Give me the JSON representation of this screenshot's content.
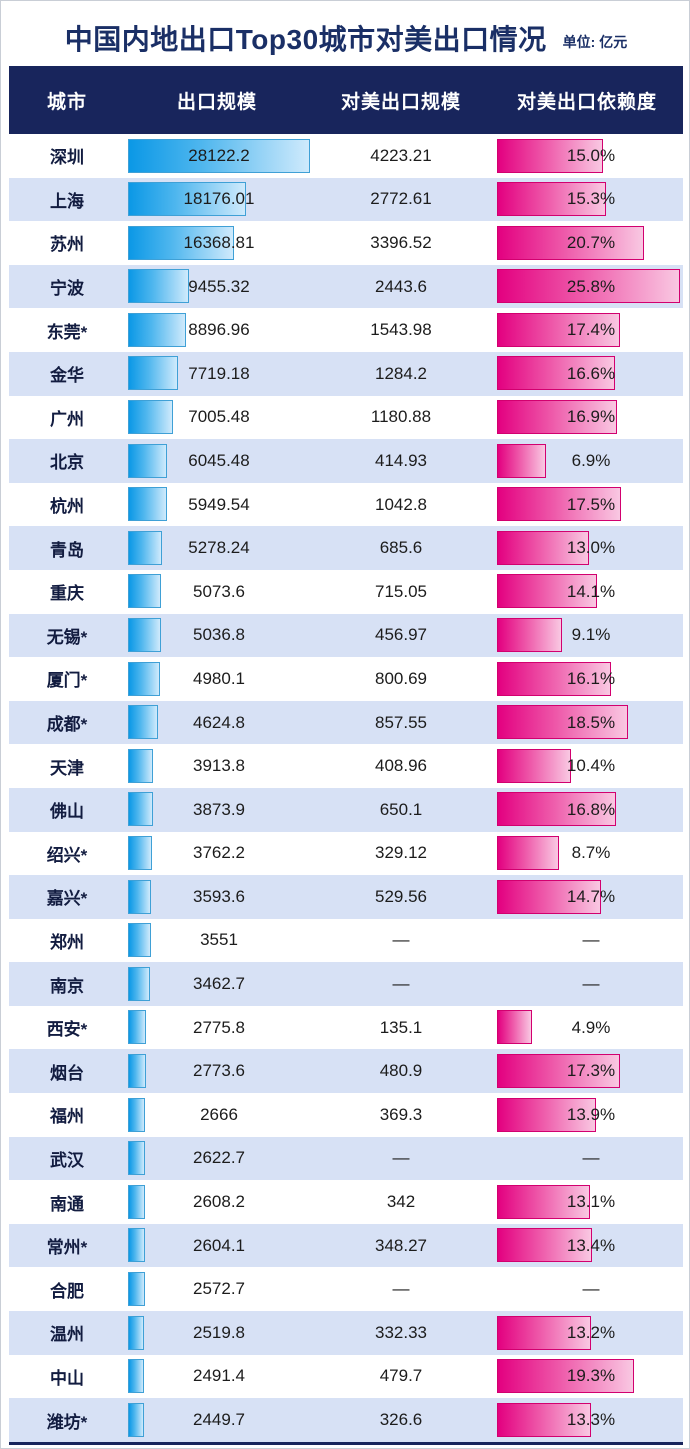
{
  "title": "中国内地出口Top30城市对美出口情况",
  "unit_label": "单位: 亿元",
  "missing_label": "—",
  "colors": {
    "navy_header": "#18255c",
    "title_text": "#1a2f66",
    "alt_row": "#d7e1f5",
    "blue_bar_start": "#0b98e6",
    "blue_bar_end": "#cfeafc",
    "pink_bar_start": "#e30080",
    "pink_bar_end": "#f9c8e2"
  },
  "table": {
    "headers": [
      "城市",
      "出口规模",
      "对美出口规模",
      "对美出口依赖度"
    ],
    "rows": [
      {
        "city": "深圳",
        "export": 28122.2,
        "export_label": "28122.2",
        "us_label": "4223.21",
        "pct": 15.0,
        "pct_label": "15.0%"
      },
      {
        "city": "上海",
        "export": 18176.01,
        "export_label": "18176.01",
        "us_label": "2772.61",
        "pct": 15.3,
        "pct_label": "15.3%"
      },
      {
        "city": "苏州",
        "export": 16368.81,
        "export_label": "16368.81",
        "us_label": "3396.52",
        "pct": 20.7,
        "pct_label": "20.7%"
      },
      {
        "city": "宁波",
        "export": 9455.32,
        "export_label": "9455.32",
        "us_label": "2443.6",
        "pct": 25.8,
        "pct_label": "25.8%"
      },
      {
        "city": "东莞*",
        "export": 8896.96,
        "export_label": "8896.96",
        "us_label": "1543.98",
        "pct": 17.4,
        "pct_label": "17.4%"
      },
      {
        "city": "金华",
        "export": 7719.18,
        "export_label": "7719.18",
        "us_label": "1284.2",
        "pct": 16.6,
        "pct_label": "16.6%"
      },
      {
        "city": "广州",
        "export": 7005.48,
        "export_label": "7005.48",
        "us_label": "1180.88",
        "pct": 16.9,
        "pct_label": "16.9%"
      },
      {
        "city": "北京",
        "export": 6045.48,
        "export_label": "6045.48",
        "us_label": "414.93",
        "pct": 6.9,
        "pct_label": "6.9%"
      },
      {
        "city": "杭州",
        "export": 5949.54,
        "export_label": "5949.54",
        "us_label": "1042.8",
        "pct": 17.5,
        "pct_label": "17.5%"
      },
      {
        "city": "青岛",
        "export": 5278.24,
        "export_label": "5278.24",
        "us_label": "685.6",
        "pct": 13.0,
        "pct_label": "13.0%"
      },
      {
        "city": "重庆",
        "export": 5073.6,
        "export_label": "5073.6",
        "us_label": "715.05",
        "pct": 14.1,
        "pct_label": "14.1%"
      },
      {
        "city": "无锡*",
        "export": 5036.8,
        "export_label": "5036.8",
        "us_label": "456.97",
        "pct": 9.1,
        "pct_label": "9.1%"
      },
      {
        "city": "厦门*",
        "export": 4980.1,
        "export_label": "4980.1",
        "us_label": "800.69",
        "pct": 16.1,
        "pct_label": "16.1%"
      },
      {
        "city": "成都*",
        "export": 4624.8,
        "export_label": "4624.8",
        "us_label": "857.55",
        "pct": 18.5,
        "pct_label": "18.5%"
      },
      {
        "city": "天津",
        "export": 3913.8,
        "export_label": "3913.8",
        "us_label": "408.96",
        "pct": 10.4,
        "pct_label": "10.4%"
      },
      {
        "city": "佛山",
        "export": 3873.9,
        "export_label": "3873.9",
        "us_label": "650.1",
        "pct": 16.8,
        "pct_label": "16.8%"
      },
      {
        "city": "绍兴*",
        "export": 3762.2,
        "export_label": "3762.2",
        "us_label": "329.12",
        "pct": 8.7,
        "pct_label": "8.7%"
      },
      {
        "city": "嘉兴*",
        "export": 3593.6,
        "export_label": "3593.6",
        "us_label": "529.56",
        "pct": 14.7,
        "pct_label": "14.7%"
      },
      {
        "city": "郑州",
        "export": 3551,
        "export_label": "3551",
        "us_label": "—",
        "pct": null,
        "pct_label": "—"
      },
      {
        "city": "南京",
        "export": 3462.7,
        "export_label": "3462.7",
        "us_label": "—",
        "pct": null,
        "pct_label": "—"
      },
      {
        "city": "西安*",
        "export": 2775.8,
        "export_label": "2775.8",
        "us_label": "135.1",
        "pct": 4.9,
        "pct_label": "4.9%"
      },
      {
        "city": "烟台",
        "export": 2773.6,
        "export_label": "2773.6",
        "us_label": "480.9",
        "pct": 17.3,
        "pct_label": "17.3%"
      },
      {
        "city": "福州",
        "export": 2666,
        "export_label": "2666",
        "us_label": "369.3",
        "pct": 13.9,
        "pct_label": "13.9%"
      },
      {
        "city": "武汉",
        "export": 2622.7,
        "export_label": "2622.7",
        "us_label": "—",
        "pct": null,
        "pct_label": "—"
      },
      {
        "city": "南通",
        "export": 2608.2,
        "export_label": "2608.2",
        "us_label": "342",
        "pct": 13.1,
        "pct_label": "13.1%"
      },
      {
        "city": "常州*",
        "export": 2604.1,
        "export_label": "2604.1",
        "us_label": "348.27",
        "pct": 13.4,
        "pct_label": "13.4%"
      },
      {
        "city": "合肥",
        "export": 2572.7,
        "export_label": "2572.7",
        "us_label": "—",
        "pct": null,
        "pct_label": "—"
      },
      {
        "city": "温州",
        "export": 2519.8,
        "export_label": "2519.8",
        "us_label": "332.33",
        "pct": 13.2,
        "pct_label": "13.2%"
      },
      {
        "city": "中山",
        "export": 2491.4,
        "export_label": "2491.4",
        "us_label": "479.7",
        "pct": 19.3,
        "pct_label": "19.3%"
      },
      {
        "city": "潍坊*",
        "export": 2449.7,
        "export_label": "2449.7",
        "us_label": "326.6",
        "pct": 13.3,
        "pct_label": "13.3%"
      }
    ]
  },
  "chart_data": {
    "type": "bar",
    "title": "中国内地出口Top30城市对美出口情况",
    "unit": "亿元",
    "categories": [
      "深圳",
      "上海",
      "苏州",
      "宁波",
      "东莞*",
      "金华",
      "广州",
      "北京",
      "杭州",
      "青岛",
      "重庆",
      "无锡*",
      "厦门*",
      "成都*",
      "天津",
      "佛山",
      "绍兴*",
      "嘉兴*",
      "郑州",
      "南京",
      "西安*",
      "烟台",
      "福州",
      "武汉",
      "南通",
      "常州*",
      "合肥",
      "温州",
      "中山",
      "潍坊*"
    ],
    "series": [
      {
        "name": "出口规模(亿元)",
        "values": [
          28122.2,
          18176.01,
          16368.81,
          9455.32,
          8896.96,
          7719.18,
          7005.48,
          6045.48,
          5949.54,
          5278.24,
          5073.6,
          5036.8,
          4980.1,
          4624.8,
          3913.8,
          3873.9,
          3762.2,
          3593.6,
          3551,
          3462.7,
          2775.8,
          2773.6,
          2666,
          2622.7,
          2608.2,
          2604.1,
          2572.7,
          2519.8,
          2491.4,
          2449.7
        ]
      },
      {
        "name": "对美出口规模(亿元)",
        "values": [
          4223.21,
          2772.61,
          3396.52,
          2443.6,
          1543.98,
          1284.2,
          1180.88,
          414.93,
          1042.8,
          685.6,
          715.05,
          456.97,
          800.69,
          857.55,
          408.96,
          650.1,
          329.12,
          529.56,
          null,
          null,
          135.1,
          480.9,
          369.3,
          null,
          342,
          348.27,
          null,
          332.33,
          479.7,
          326.6
        ]
      },
      {
        "name": "对美出口依赖度(%)",
        "values": [
          15.0,
          15.3,
          20.7,
          25.8,
          17.4,
          16.6,
          16.9,
          6.9,
          17.5,
          13.0,
          14.1,
          9.1,
          16.1,
          18.5,
          10.4,
          16.8,
          8.7,
          14.7,
          null,
          null,
          4.9,
          17.3,
          13.9,
          null,
          13.1,
          13.4,
          null,
          13.2,
          19.3,
          13.3
        ]
      }
    ],
    "layout": {
      "orientation": "horizontal",
      "bars_embedded_in_table": true,
      "value_labels_on": true,
      "missing_marker": "—"
    }
  }
}
